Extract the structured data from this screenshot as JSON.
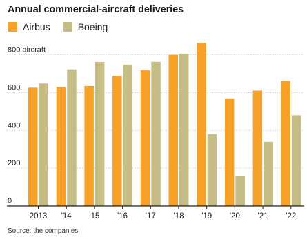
{
  "title": "Annual commercial-aircraft deliveries",
  "source": "Source: the companies",
  "colors": {
    "airbus": "#F7A128",
    "boeing": "#C6BE86",
    "grid": "#cfcfcf",
    "axis": "#222222"
  },
  "chart_data": {
    "type": "bar",
    "title": "Annual commercial-aircraft deliveries",
    "categories": [
      "2013",
      "'14",
      "'15",
      "'16",
      "'17",
      "'18",
      "'19",
      "'20",
      "'21",
      "'22"
    ],
    "series": [
      {
        "name": "Airbus",
        "values": [
          626,
          629,
          635,
          688,
          718,
          800,
          863,
          566,
          611,
          661
        ]
      },
      {
        "name": "Boeing",
        "values": [
          648,
          723,
          762,
          748,
          763,
          806,
          380,
          157,
          340,
          480
        ]
      }
    ],
    "yticks": [
      0,
      200,
      400,
      600,
      800
    ],
    "ytick_labels": [
      "0",
      "200",
      "400",
      "600",
      "800 aircraft"
    ],
    "ylim": [
      0,
      880
    ],
    "grid": true,
    "legend": "top-left"
  }
}
